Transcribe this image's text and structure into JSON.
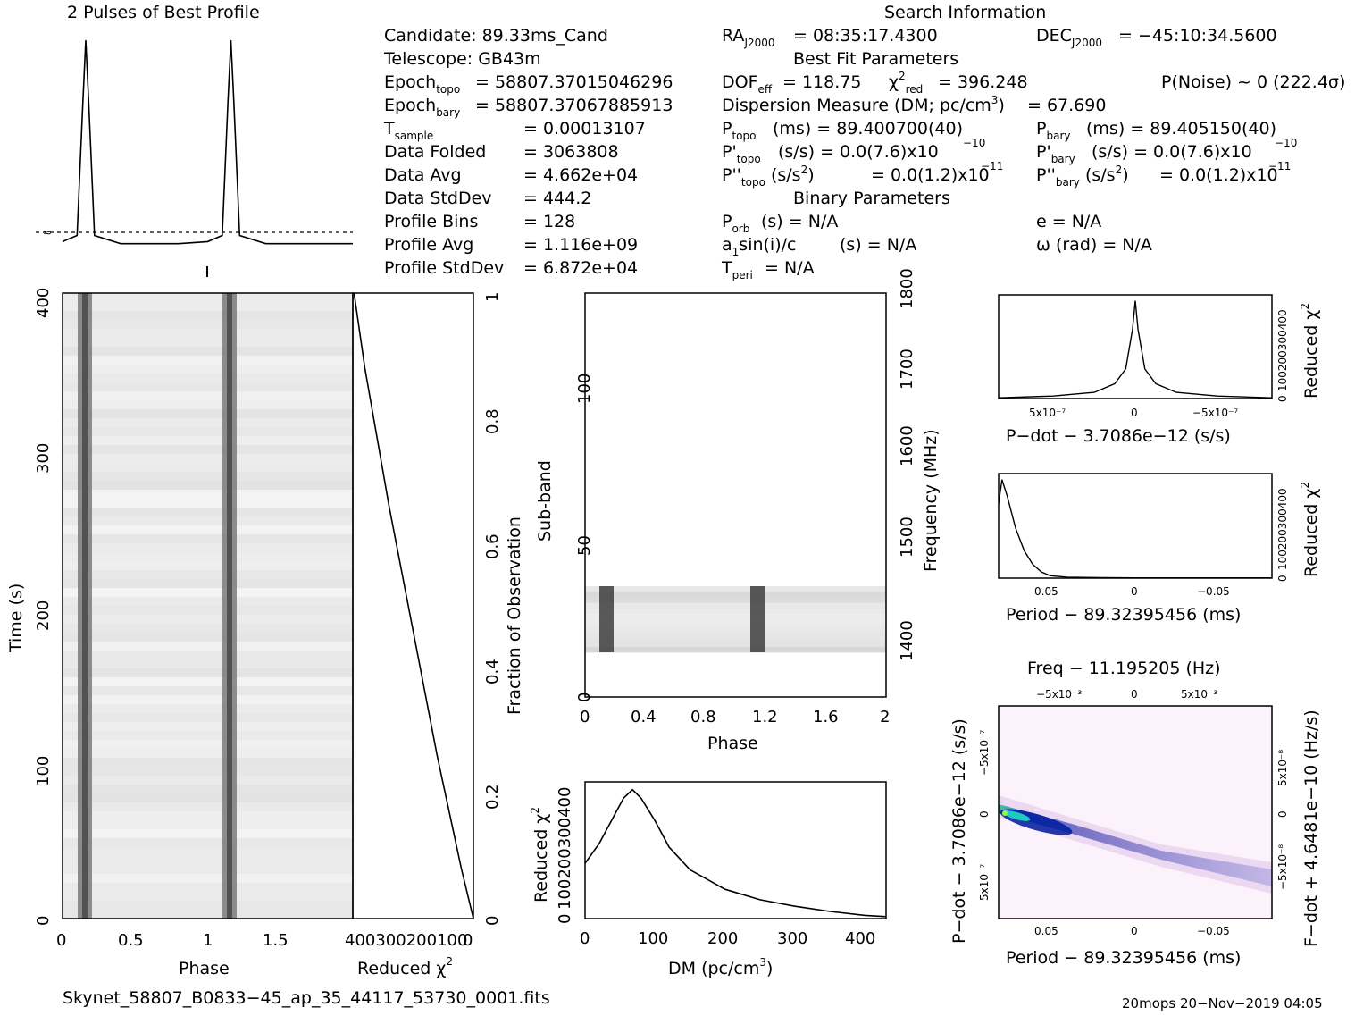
{
  "profile_title": "2 Pulses of Best Profile",
  "search_info_title": "Search Information",
  "info": {
    "candidate": "Candidate:  89.33ms_Cand",
    "telescope": "Telescope:  GB43m",
    "epoch_topo": "= 58807.37015046296",
    "epoch_bary": "= 58807.37067885913",
    "tsample": "=   0.00013107",
    "data_folded": "=   3063808",
    "data_avg": "=   4.662e+04",
    "data_stddev": "=   444.2",
    "profile_bins": "=   128",
    "profile_avg": "=   1.116e+09",
    "profile_stddev": "=   6.872e+04",
    "ra": "= 08:35:17.4300",
    "dec": "= −45:10:34.5600",
    "best_fit_title": "Best Fit Parameters",
    "dof": "= 118.75",
    "chi2": "= 396.248",
    "pnoise": "P(Noise) ~ 0    (222.4σ)",
    "dm_line": "= 67.690",
    "ptopo": "(ms) =   89.400700(40)",
    "pbary": "(ms) =   89.405150(40)",
    "pdtopo": "(s/s) = 0.0(7.6)x10",
    "pdtopo_exp": "−10",
    "pdbary": "(s/s) = 0.0(7.6)x10",
    "pdbary_exp": "−10",
    "pddtopo": "= 0.0(1.2)x10",
    "pddtopo_exp": "−11",
    "pddbary": "= 0.0(1.2)x10",
    "pddbary_exp": "−11",
    "binary_title": "Binary Parameters",
    "porb": "(s) = N/A",
    "e": "e = N/A",
    "asini": "(s) = N/A",
    "omega": "ω (rad) = N/A",
    "tperi": "= N/A"
  },
  "footer_file": "Skynet_58807_B0833−45_ap_35_44117_53730_0001.fits",
  "footer_stamp": "20mops 20−Nov−2019 04:05",
  "chart_data": [
    {
      "id": "profile",
      "type": "line",
      "title": "2 Pulses of Best Profile",
      "x": [
        0.0,
        0.1,
        0.14,
        0.16,
        0.18,
        0.22,
        0.4,
        0.6,
        0.8,
        1.0,
        1.1,
        1.14,
        1.16,
        1.18,
        1.22,
        1.4,
        1.6,
        1.8,
        2.0
      ],
      "y": [
        0.02,
        0.05,
        0.7,
        1.0,
        0.7,
        0.05,
        0.01,
        0.01,
        0.01,
        0.02,
        0.05,
        0.7,
        1.0,
        0.7,
        0.05,
        0.01,
        0.01,
        0.01,
        0.01
      ],
      "xlim": [
        0,
        2
      ]
    },
    {
      "id": "time_phase",
      "type": "heatmap",
      "xlabel": "Phase",
      "ylabel": "Time (s)",
      "xlim": [
        0,
        2
      ],
      "ylim": [
        0,
        400
      ],
      "xticks": [
        "0",
        "0.5",
        "1",
        "1.5"
      ],
      "yticks": [
        "0",
        "100",
        "200",
        "300",
        "400"
      ],
      "pulse_phases": [
        0.15,
        1.15
      ]
    },
    {
      "id": "time_chi2",
      "type": "line",
      "xlabel": "Reduced χ²",
      "ylabel_right": "Fraction of Observation",
      "xtick_text": "400300200100",
      "xtick_last": "0",
      "yticks_right": [
        "0",
        "0.2",
        "0.4",
        "0.6",
        "0.8",
        "1"
      ],
      "chi2": [
        0,
        40,
        80,
        120,
        160,
        200,
        240,
        280,
        320,
        360,
        396
      ],
      "fraction": [
        0,
        0.08,
        0.17,
        0.26,
        0.36,
        0.46,
        0.56,
        0.66,
        0.77,
        0.88,
        1.0
      ]
    },
    {
      "id": "subband",
      "type": "heatmap",
      "xlabel": "Phase",
      "ylabel": "Sub-band",
      "ylabel_right": "Frequency (MHz)",
      "xlim": [
        0,
        2
      ],
      "ylim": [
        0,
        128
      ],
      "xticks": [
        "0",
        "0.4",
        "0.8",
        "1.2",
        "1.6",
        "2"
      ],
      "yticks": [
        "0",
        "50",
        "100"
      ],
      "yticks_right": [
        "1400",
        "1500",
        "1600",
        "1700",
        "1800"
      ],
      "active_subbands": [
        15,
        35
      ],
      "pulse_phases": [
        0.14,
        1.14
      ]
    },
    {
      "id": "dm",
      "type": "line",
      "xlabel": "DM (pc/cm³)",
      "ylabel": "Reduced χ²",
      "ytick_text": "100200300400",
      "ytick_first": "0",
      "xlim": [
        0,
        430
      ],
      "ylim": [
        0,
        420
      ],
      "xticks": [
        "0",
        "100",
        "200",
        "300",
        "400"
      ],
      "x": [
        0,
        20,
        40,
        55,
        67.7,
        80,
        100,
        120,
        150,
        200,
        250,
        300,
        350,
        400,
        430
      ],
      "y": [
        170,
        230,
        310,
        370,
        396,
        370,
        300,
        220,
        150,
        90,
        58,
        38,
        22,
        10,
        6
      ]
    },
    {
      "id": "pdot",
      "type": "line",
      "xlabel": "P−dot − 3.7086e−12 (s/s)",
      "ylabel_right": "Reduced χ²",
      "ytick_text": "100200300400",
      "ytick_first": "0",
      "xticks": [
        "5x10⁻⁷",
        "0",
        "−5x10⁻⁷"
      ],
      "x": [
        -1.0,
        -0.6,
        -0.3,
        -0.15,
        -0.07,
        -0.02,
        0,
        0.02,
        0.07,
        0.15,
        0.3,
        0.6,
        1.0
      ],
      "y": [
        3,
        10,
        25,
        60,
        120,
        280,
        396,
        280,
        120,
        60,
        25,
        10,
        3
      ]
    },
    {
      "id": "period",
      "type": "line",
      "xlabel": "Period − 89.32395456 (ms)",
      "ylabel_right": "Reduced χ²",
      "ytick_text": "100200300400",
      "ytick_first": "0",
      "xticks": [
        "0.05",
        "0",
        "−0.05"
      ],
      "x": [
        0.08,
        0.078,
        0.075,
        0.07,
        0.065,
        0.06,
        0.055,
        0.05,
        0.04,
        0.02,
        0,
        -0.04,
        -0.08
      ],
      "y": [
        300,
        396,
        330,
        200,
        110,
        55,
        25,
        10,
        4,
        2,
        1,
        1,
        1
      ]
    },
    {
      "id": "pp_dot",
      "type": "heatmap",
      "title": "Freq − 11.195205 (Hz)",
      "xlabel": "Period − 89.32395456 (ms)",
      "ylabel": "P−dot − 3.7086e−12 (s/s)",
      "ylabel_right": "F−dot + 4.6481e−10 (Hz/s)",
      "xticks": [
        "0.05",
        "0",
        "−0.05"
      ],
      "xticks_top": [
        "−5x10⁻³",
        "0",
        "5x10⁻³"
      ],
      "yticks": [
        "−5x10⁻⁷",
        "0",
        "5x10⁻⁷"
      ],
      "yticks_right": [
        "5x10⁻⁸",
        "0",
        "−5x10⁻⁸"
      ]
    }
  ]
}
